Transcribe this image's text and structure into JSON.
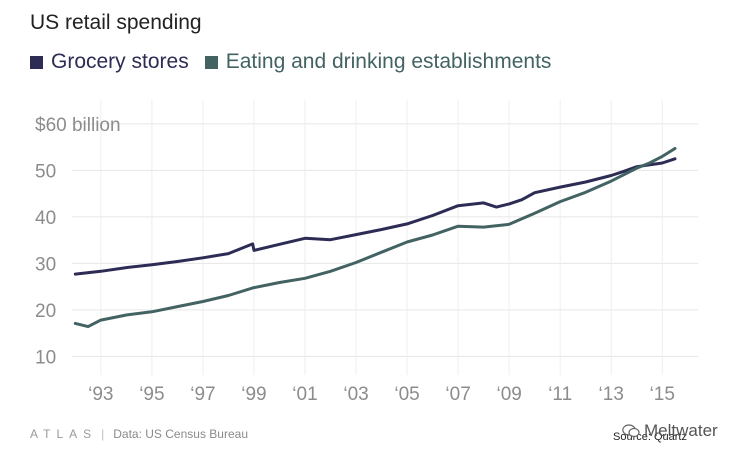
{
  "chart_data": {
    "type": "line",
    "title": "US retail spending",
    "xlabel": "",
    "ylabel": "",
    "xlim": [
      1991.4,
      2016.4
    ],
    "ylim": [
      6,
      66
    ],
    "y_ticks": [
      10,
      20,
      30,
      40,
      50,
      60
    ],
    "y_tick_labels": [
      "10",
      "20",
      "30",
      "40",
      "50",
      "$60 billion"
    ],
    "x_ticks": [
      1993,
      1995,
      1997,
      1999,
      2001,
      2003,
      2005,
      2007,
      2009,
      2011,
      2013,
      2015
    ],
    "x_tick_labels": [
      "‘93",
      "‘95",
      "‘97",
      "‘99",
      "‘01",
      "‘03",
      "‘05",
      "‘07",
      "‘09",
      "‘11",
      "‘13",
      "‘15"
    ],
    "series": [
      {
        "name": "Grocery stores",
        "color": "#2c2c54",
        "x": [
          1992.0,
          1993.0,
          1994.0,
          1995.0,
          1996.0,
          1997.0,
          1998.0,
          1998.95,
          1999.0,
          2000.0,
          2001.0,
          2002.0,
          2003.0,
          2004.0,
          2005.0,
          2006.0,
          2007.0,
          2008.0,
          2008.5,
          2009.0,
          2009.5,
          2010.0,
          2011.0,
          2012.0,
          2013.0,
          2013.5,
          2014.0,
          2015.0,
          2015.5
        ],
        "y": [
          27.7,
          28.3,
          29.1,
          29.7,
          30.4,
          31.2,
          32.1,
          34.2,
          32.8,
          34.1,
          35.4,
          35.1,
          36.2,
          37.3,
          38.5,
          40.3,
          42.4,
          43.0,
          42.1,
          42.8,
          43.7,
          45.2,
          46.4,
          47.5,
          48.9,
          49.8,
          50.8,
          51.6,
          52.5
        ]
      },
      {
        "name": "Eating and drinking establishments",
        "color": "#436363",
        "x": [
          1992.0,
          1992.5,
          1993.0,
          1994.0,
          1995.0,
          1996.0,
          1997.0,
          1998.0,
          1999.0,
          2000.0,
          2001.0,
          2002.0,
          2003.0,
          2004.0,
          2005.0,
          2006.0,
          2007.0,
          2008.0,
          2009.0,
          2010.0,
          2011.0,
          2012.0,
          2013.0,
          2014.0,
          2014.5,
          2015.0,
          2015.5
        ],
        "y": [
          17.1,
          16.4,
          17.8,
          18.9,
          19.6,
          20.7,
          21.8,
          23.1,
          24.8,
          25.9,
          26.8,
          28.3,
          30.2,
          32.4,
          34.6,
          36.1,
          38.0,
          37.8,
          38.4,
          40.8,
          43.3,
          45.3,
          47.7,
          50.5,
          51.6,
          53.0,
          54.7
        ]
      }
    ]
  },
  "footer": {
    "brand": "ATLAS",
    "data_label": "Data:  US Census Bureau",
    "source_label": "Source: Quartz",
    "watermark": "Meltwater",
    "watermark_icon": "wechat-icon"
  }
}
